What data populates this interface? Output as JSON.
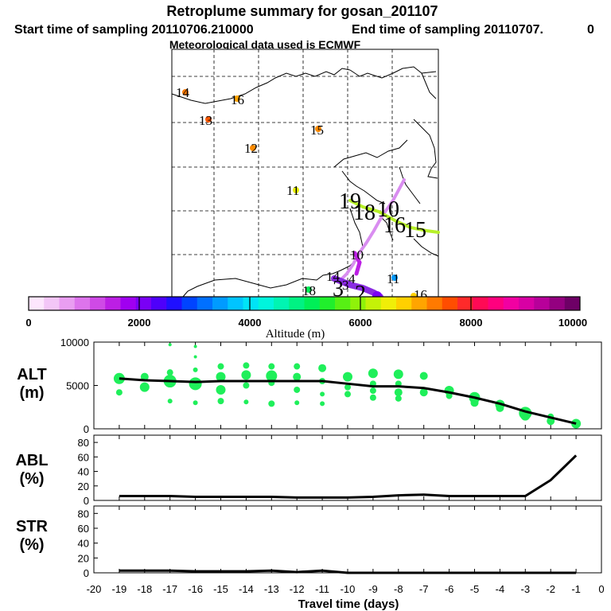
{
  "titles": {
    "main": "Retroplume summary for gosan_201107",
    "start": "Start time of sampling 20110706.210000",
    "end": "End time of sampling 20110707.",
    "end_suffix": "0",
    "met": "Meteorological data used is ECMWF"
  },
  "colorbar": {
    "label": "Altitude (m)",
    "ticks": [
      "0",
      "2000",
      "4000",
      "6000",
      "8000",
      "10000"
    ],
    "colors": [
      "#fde6fd",
      "#f3c6f7",
      "#e99ef1",
      "#dd74ec",
      "#cf4ae6",
      "#bc1fe4",
      "#a000f0",
      "#7a00f5",
      "#4e00fb",
      "#1f10ff",
      "#0044ff",
      "#0070ff",
      "#009bff",
      "#00c4ff",
      "#00e3f7",
      "#00f5dd",
      "#00f5b2",
      "#00f283",
      "#00ef57",
      "#20ef2c",
      "#57f014",
      "#8ff20a",
      "#c4f208",
      "#f0ee08",
      "#ffd000",
      "#ffa500",
      "#ff7a00",
      "#ff4d00",
      "#ff2a2a",
      "#ff0a55",
      "#ff007e",
      "#f200a2",
      "#d800a4",
      "#b8009a",
      "#940080",
      "#6e0066"
    ]
  },
  "map": {
    "labels": [
      {
        "text": "14",
        "color": "#ff7a00"
      },
      {
        "text": "16",
        "color": "#ffa500"
      },
      {
        "text": "13",
        "color": "#ff5a00"
      },
      {
        "text": "15",
        "color": "#ff8c00"
      },
      {
        "text": "12",
        "color": "#ff8c00"
      },
      {
        "text": "11",
        "color": "#e8f000"
      },
      {
        "text": "10",
        "color": "#c4f208"
      },
      {
        "text": "18",
        "color": "#00ef57"
      },
      {
        "text": "14",
        "color": "#8a2be2"
      },
      {
        "text": "11",
        "color": "#009bff"
      },
      {
        "text": "16",
        "color": "#ffd000"
      },
      {
        "text": "3",
        "color": "#8a2be2"
      },
      {
        "text": "4",
        "color": "#8a2be2"
      }
    ],
    "overlays": [
      "19",
      "18",
      "10",
      "16",
      "15",
      "2",
      "3"
    ]
  },
  "chart_data": [
    {
      "type": "scatter",
      "title": "ALT",
      "ylabel": "ALT (m)",
      "ylabel_line1": "ALT",
      "ylabel_line2": "(m)",
      "ylim": [
        0,
        10000
      ],
      "yticks": [
        "10000",
        "5000",
        "0"
      ],
      "xlim": [
        -20,
        0
      ],
      "line": {
        "x": [
          -19,
          -18,
          -17,
          -16,
          -15,
          -14,
          -13,
          -12,
          -11,
          -10,
          -9,
          -8,
          -7,
          -6,
          -5,
          -4,
          -3,
          -2,
          -1
        ],
        "y": [
          5800,
          5600,
          5500,
          5400,
          5500,
          5500,
          5500,
          5500,
          5500,
          5200,
          4900,
          4900,
          4700,
          4200,
          3600,
          2900,
          2000,
          1300,
          600
        ]
      },
      "points": [
        {
          "x": -19,
          "y": 5800,
          "s": 7
        },
        {
          "x": -19,
          "y": 4200,
          "s": 4
        },
        {
          "x": -18,
          "y": 6000,
          "s": 5
        },
        {
          "x": -18,
          "y": 4800,
          "s": 6
        },
        {
          "x": -17,
          "y": 6500,
          "s": 4
        },
        {
          "x": -17,
          "y": 5500,
          "s": 8
        },
        {
          "x": -17,
          "y": 3200,
          "s": 3
        },
        {
          "x": -17,
          "y": 9700,
          "s": 2
        },
        {
          "x": -16,
          "y": 8300,
          "s": 2
        },
        {
          "x": -16,
          "y": 6800,
          "s": 3
        },
        {
          "x": -16,
          "y": 5200,
          "s": 8
        },
        {
          "x": -16,
          "y": 3000,
          "s": 3
        },
        {
          "x": -16,
          "y": 9500,
          "s": 2
        },
        {
          "x": -15,
          "y": 7200,
          "s": 4
        },
        {
          "x": -15,
          "y": 6000,
          "s": 6
        },
        {
          "x": -15,
          "y": 4500,
          "s": 6
        },
        {
          "x": -15,
          "y": 3200,
          "s": 4
        },
        {
          "x": -14,
          "y": 7300,
          "s": 4
        },
        {
          "x": -14,
          "y": 6200,
          "s": 6
        },
        {
          "x": -14,
          "y": 5000,
          "s": 4
        },
        {
          "x": -14,
          "y": 3100,
          "s": 3
        },
        {
          "x": -13,
          "y": 7200,
          "s": 4
        },
        {
          "x": -13,
          "y": 6100,
          "s": 7
        },
        {
          "x": -13,
          "y": 5300,
          "s": 4
        },
        {
          "x": -13,
          "y": 2900,
          "s": 4
        },
        {
          "x": -12,
          "y": 7200,
          "s": 4
        },
        {
          "x": -12,
          "y": 6000,
          "s": 5
        },
        {
          "x": -12,
          "y": 4500,
          "s": 4
        },
        {
          "x": -12,
          "y": 3000,
          "s": 3
        },
        {
          "x": -11,
          "y": 7000,
          "s": 5
        },
        {
          "x": -11,
          "y": 5500,
          "s": 4
        },
        {
          "x": -11,
          "y": 4000,
          "s": 3
        },
        {
          "x": -11,
          "y": 2900,
          "s": 3
        },
        {
          "x": -10,
          "y": 6000,
          "s": 6
        },
        {
          "x": -10,
          "y": 4800,
          "s": 4
        },
        {
          "x": -10,
          "y": 4000,
          "s": 4
        },
        {
          "x": -9,
          "y": 6400,
          "s": 6
        },
        {
          "x": -9,
          "y": 5200,
          "s": 4
        },
        {
          "x": -9,
          "y": 4400,
          "s": 4
        },
        {
          "x": -9,
          "y": 3600,
          "s": 4
        },
        {
          "x": -8,
          "y": 6300,
          "s": 6
        },
        {
          "x": -8,
          "y": 5200,
          "s": 4
        },
        {
          "x": -8,
          "y": 4200,
          "s": 5
        },
        {
          "x": -8,
          "y": 3500,
          "s": 4
        },
        {
          "x": -7,
          "y": 6100,
          "s": 5
        },
        {
          "x": -7,
          "y": 4200,
          "s": 5
        },
        {
          "x": -6,
          "y": 4400,
          "s": 6
        },
        {
          "x": -6,
          "y": 3800,
          "s": 4
        },
        {
          "x": -5,
          "y": 3600,
          "s": 7
        },
        {
          "x": -5,
          "y": 3000,
          "s": 5
        },
        {
          "x": -4,
          "y": 2800,
          "s": 6
        },
        {
          "x": -4,
          "y": 2400,
          "s": 5
        },
        {
          "x": -3,
          "y": 1800,
          "s": 8
        },
        {
          "x": -3,
          "y": 1500,
          "s": 6
        },
        {
          "x": -2,
          "y": 1400,
          "s": 4
        },
        {
          "x": -2,
          "y": 900,
          "s": 5
        },
        {
          "x": -1,
          "y": 600,
          "s": 6
        }
      ]
    },
    {
      "type": "line",
      "title": "ABL",
      "ylabel": "ABL (%)",
      "ylabel_line1": "ABL",
      "ylabel_line2": "(%)",
      "ylim": [
        0,
        90
      ],
      "yticks": [
        "80",
        "60",
        "40",
        "20",
        "0"
      ],
      "x": [
        -19,
        -18,
        -17,
        -16,
        -15,
        -14,
        -13,
        -12,
        -11,
        -10,
        -9,
        -8,
        -7,
        -6,
        -5,
        -4,
        -3,
        -2,
        -1
      ],
      "values": [
        6,
        6,
        6,
        5,
        5,
        5,
        5,
        4,
        4,
        4,
        5,
        7,
        8,
        6,
        6,
        6,
        6,
        28,
        62
      ]
    },
    {
      "type": "line",
      "title": "STR",
      "ylabel": "STR (%)",
      "ylabel_line1": "STR",
      "ylabel_line2": "(%)",
      "ylim": [
        0,
        90
      ],
      "yticks": [
        "80",
        "60",
        "40",
        "20",
        "0"
      ],
      "x": [
        -19,
        -18,
        -17,
        -16,
        -15,
        -14,
        -13,
        -12,
        -11,
        -10,
        -9,
        -8,
        -7,
        -6,
        -5,
        -4,
        -3,
        -2,
        -1
      ],
      "values": [
        3,
        3,
        3,
        2,
        2,
        2,
        3,
        1,
        3,
        0,
        0,
        0,
        0,
        0,
        0,
        0,
        0,
        0,
        0
      ],
      "xlabel": "Travel time (days)",
      "xticks": [
        "-20",
        "-19",
        "-18",
        "-17",
        "-16",
        "-15",
        "-14",
        "-13",
        "-12",
        "-11",
        "-10",
        "-9",
        "-8",
        "-7",
        "-6",
        "-5",
        "-4",
        "-3",
        "-2",
        "-1",
        "0"
      ]
    }
  ]
}
